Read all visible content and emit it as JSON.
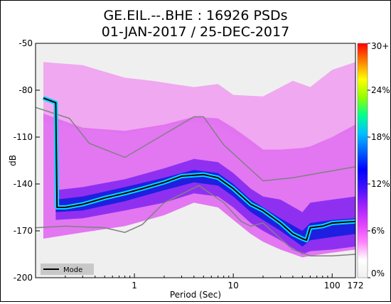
{
  "chart_data": {
    "type": "heatmap",
    "title": "GE.EIL.--.BHE : 16926 PSDs",
    "subtitle": "01-JAN-2017 / 25-DEC-2017",
    "xlabel": "Period (Sec)",
    "ylabel": "dB",
    "x_scale": "log",
    "xlim": [
      0.1,
      172
    ],
    "ylim": [
      -200,
      -50
    ],
    "x_tick_labels": [
      "1",
      "10",
      "100",
      "172"
    ],
    "x_tick_values": [
      1,
      10,
      100,
      172
    ],
    "y_tick_values": [
      -50,
      -80,
      -110,
      -140,
      -170,
      -200
    ],
    "y_tick_labels": [
      "-50",
      "-80",
      "-110",
      "-140",
      "-170",
      "-200"
    ],
    "colorbar": {
      "tick_labels": [
        "30+",
        "24%",
        "18%",
        "12%",
        "6%",
        "0%"
      ],
      "tick_values": [
        30,
        24,
        18,
        12,
        6,
        0
      ],
      "colors": [
        "#f0f0f0",
        "#ffffff",
        "#ff80ff",
        "#e040ff",
        "#a020ff",
        "#4010ff",
        "#0000ff",
        "#0060ff",
        "#00c0ff",
        "#00ff90",
        "#90ff00",
        "#ffff00",
        "#ff8000",
        "#ff0000"
      ]
    },
    "legend": {
      "position": "bottom-left",
      "entries": [
        "Mode"
      ]
    },
    "series": [
      {
        "name": "Mode",
        "x": [
          0.12,
          0.16,
          0.165,
          0.2,
          0.3,
          0.5,
          0.8,
          1.2,
          2,
          3,
          5,
          7,
          10,
          15,
          20,
          30,
          40,
          50,
          55,
          60,
          80,
          100,
          172
        ],
        "y": [
          -85,
          -88,
          -155,
          -155,
          -153,
          -149,
          -146,
          -143,
          -139,
          -135,
          -134,
          -136,
          -143,
          -153,
          -157,
          -165,
          -172,
          -175,
          -176,
          -168,
          -167,
          -165,
          -164
        ]
      }
    ],
    "noise_models": {
      "nhnm": {
        "x": [
          0.1,
          0.22,
          0.35,
          0.8,
          4,
          5,
          8,
          20,
          40,
          172
        ],
        "y": [
          -91,
          -98,
          -114,
          -123,
          -97,
          -97,
          -115,
          -138,
          -136,
          -129
        ]
      },
      "nlnm": {
        "x": [
          0.1,
          0.2,
          0.5,
          0.8,
          1.2,
          2,
          4.5,
          8,
          12,
          15,
          20,
          40,
          60,
          100,
          172
        ],
        "y": [
          -168,
          -167,
          -168,
          -171,
          -166,
          -152,
          -141,
          -152,
          -164,
          -167,
          -165,
          -182,
          -186,
          -186,
          -185
        ]
      }
    },
    "density_bands": [
      {
        "level": "core",
        "x": [
          0.16,
          0.3,
          0.8,
          2,
          4,
          7,
          10,
          15,
          20,
          30,
          50,
          60,
          100,
          172
        ],
        "upper": [
          -150,
          -148,
          -142,
          -136,
          -131,
          -133,
          -140,
          -150,
          -155,
          -162,
          -170,
          -165,
          -163,
          -162
        ],
        "lower": [
          -158,
          -157,
          -151,
          -144,
          -139,
          -141,
          -148,
          -158,
          -163,
          -170,
          -180,
          -176,
          -174,
          -172
        ]
      },
      {
        "level": "mid",
        "x": [
          0.16,
          0.3,
          0.8,
          2,
          4,
          7,
          10,
          15,
          20,
          30,
          50,
          60,
          100,
          172
        ],
        "upper": [
          -144,
          -142,
          -137,
          -130,
          -124,
          -126,
          -133,
          -143,
          -148,
          -150,
          -158,
          -152,
          -150,
          -148
        ],
        "lower": [
          -163,
          -162,
          -157,
          -152,
          -146,
          -148,
          -155,
          -165,
          -170,
          -176,
          -185,
          -183,
          -182,
          -180
        ]
      },
      {
        "level": "outer",
        "x": [
          0.12,
          0.3,
          0.8,
          2,
          4,
          7,
          10,
          15,
          20,
          30,
          50,
          60,
          100,
          172
        ],
        "upper": [
          -95,
          -104,
          -106,
          -102,
          -97,
          -98,
          -104,
          -112,
          -118,
          -118,
          -117,
          -116,
          -110,
          -102
        ],
        "lower": [
          -175,
          -171,
          -167,
          -160,
          -152,
          -155,
          -163,
          -172,
          -177,
          -182,
          -187,
          -186,
          -184,
          -182
        ]
      },
      {
        "level": "faint",
        "x": [
          0.12,
          0.3,
          0.8,
          1.5,
          4,
          7,
          10,
          20,
          40,
          60,
          100,
          172
        ],
        "upper": [
          -62,
          -64,
          -72,
          -74,
          -78,
          -76,
          -83,
          -84,
          -74,
          -78,
          -67,
          -62
        ],
        "lower": [
          -100,
          -105,
          -108,
          -104,
          -100,
          -102,
          -108,
          -120,
          -118,
          -118,
          -110,
          -105
        ]
      }
    ]
  }
}
